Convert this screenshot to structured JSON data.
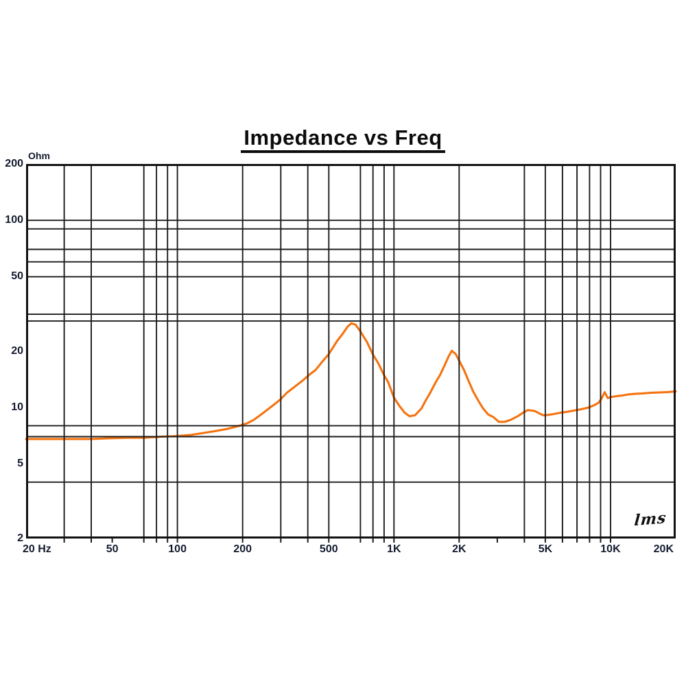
{
  "signature": "LMS",
  "colors": {
    "curve": "#f5730f",
    "grid": "#1c1c1c",
    "border": "#111111",
    "text": "#141b2e",
    "title": "#0c0c0c",
    "background": "#ffffff"
  },
  "y_axis": {
    "unit": "Ohm",
    "ticks": [
      {
        "label": "200",
        "value": 200
      },
      {
        "label": "100",
        "value": 100
      },
      {
        "label": "50",
        "value": 50
      },
      {
        "label": "20",
        "value": 20
      },
      {
        "label": "10",
        "value": 10
      },
      {
        "label": "5",
        "value": 5
      },
      {
        "label": "2",
        "value": 2
      }
    ]
  },
  "x_axis": {
    "ticks": [
      {
        "label": "20 Hz",
        "value": 20,
        "align": "left"
      },
      {
        "label": "50",
        "value": 50,
        "align": "center"
      },
      {
        "label": "100",
        "value": 100,
        "align": "center"
      },
      {
        "label": "200",
        "value": 200,
        "align": "center"
      },
      {
        "label": "500",
        "value": 500,
        "align": "center"
      },
      {
        "label": "1K",
        "value": 1000,
        "align": "center"
      },
      {
        "label": "2K",
        "value": 2000,
        "align": "center"
      },
      {
        "label": "5K",
        "value": 5000,
        "align": "center"
      },
      {
        "label": "10K",
        "value": 10000,
        "align": "center"
      },
      {
        "label": "20K",
        "value": 20000,
        "align": "right"
      }
    ]
  },
  "grid": {
    "x_lines_hz": [
      30,
      40,
      70,
      80,
      90,
      100,
      200,
      300,
      400,
      500,
      700,
      800,
      900,
      1000,
      2000,
      4000,
      5000,
      6000,
      7000,
      8000,
      9000,
      10000
    ],
    "y_lines_ohm": [
      100,
      90,
      70,
      60,
      50,
      31.5,
      29,
      8,
      7,
      4
    ],
    "x_axis_ticks_hz": [
      30,
      40,
      50,
      70,
      80,
      90,
      100,
      200,
      300,
      400,
      500,
      700,
      800,
      900,
      1000,
      2000,
      3000,
      4000,
      5000,
      6000,
      7000,
      8000,
      9000,
      10000
    ]
  },
  "chart_data": {
    "type": "line",
    "title": "Impedance vs Freq",
    "xlabel": "Hz",
    "ylabel": "Ohm",
    "x_scale": "log",
    "y_scale": "log",
    "xlim": [
      20,
      20000
    ],
    "ylim": [
      2,
      200
    ],
    "grid": true,
    "legend": false,
    "annotations": [
      "LMS signature bottom-right"
    ],
    "series": [
      {
        "name": "Impedance",
        "color": "#f5730f",
        "points": [
          [
            20,
            6.8
          ],
          [
            24,
            6.8
          ],
          [
            28,
            6.8
          ],
          [
            33,
            6.8
          ],
          [
            40,
            6.8
          ],
          [
            48,
            6.85
          ],
          [
            58,
            6.9
          ],
          [
            70,
            6.9
          ],
          [
            85,
            7.0
          ],
          [
            100,
            7.05
          ],
          [
            115,
            7.15
          ],
          [
            130,
            7.3
          ],
          [
            150,
            7.5
          ],
          [
            170,
            7.7
          ],
          [
            190,
            7.95
          ],
          [
            210,
            8.25
          ],
          [
            225,
            8.6
          ],
          [
            247,
            9.3
          ],
          [
            265,
            9.9
          ],
          [
            280,
            10.4
          ],
          [
            300,
            11.1
          ],
          [
            320,
            12.0
          ],
          [
            350,
            13.0
          ],
          [
            380,
            14.0
          ],
          [
            410,
            15.1
          ],
          [
            435,
            15.9
          ],
          [
            465,
            17.5
          ],
          [
            500,
            19.3
          ],
          [
            545,
            22.6
          ],
          [
            580,
            24.8
          ],
          [
            610,
            27.0
          ],
          [
            635,
            28.2
          ],
          [
            665,
            27.7
          ],
          [
            700,
            25.5
          ],
          [
            750,
            22.4
          ],
          [
            800,
            19.2
          ],
          [
            845,
            17.3
          ],
          [
            900,
            14.9
          ],
          [
            940,
            13.7
          ],
          [
            1000,
            11.3
          ],
          [
            1060,
            10.2
          ],
          [
            1120,
            9.4
          ],
          [
            1180,
            9.0
          ],
          [
            1250,
            9.1
          ],
          [
            1340,
            9.9
          ],
          [
            1400,
            10.9
          ],
          [
            1470,
            12.0
          ],
          [
            1550,
            13.5
          ],
          [
            1630,
            14.9
          ],
          [
            1720,
            17.0
          ],
          [
            1790,
            18.8
          ],
          [
            1850,
            20.1
          ],
          [
            1930,
            19.3
          ],
          [
            2000,
            17.8
          ],
          [
            2100,
            16.0
          ],
          [
            2210,
            13.9
          ],
          [
            2320,
            12.2
          ],
          [
            2450,
            10.9
          ],
          [
            2580,
            9.9
          ],
          [
            2720,
            9.2
          ],
          [
            2880,
            8.9
          ],
          [
            3050,
            8.4
          ],
          [
            3250,
            8.4
          ],
          [
            3450,
            8.6
          ],
          [
            3700,
            8.95
          ],
          [
            3950,
            9.4
          ],
          [
            4150,
            9.7
          ],
          [
            4450,
            9.6
          ],
          [
            4700,
            9.3
          ],
          [
            4900,
            9.1
          ],
          [
            5200,
            9.15
          ],
          [
            5500,
            9.25
          ],
          [
            5900,
            9.4
          ],
          [
            6300,
            9.5
          ],
          [
            6800,
            9.65
          ],
          [
            7300,
            9.8
          ],
          [
            7900,
            10.0
          ],
          [
            8400,
            10.3
          ],
          [
            8800,
            10.6
          ],
          [
            9100,
            11.2
          ],
          [
            9400,
            12.1
          ],
          [
            9700,
            11.25
          ],
          [
            10100,
            11.4
          ],
          [
            10600,
            11.5
          ],
          [
            11300,
            11.6
          ],
          [
            12000,
            11.75
          ],
          [
            13000,
            11.85
          ],
          [
            14000,
            11.9
          ],
          [
            15300,
            12.0
          ],
          [
            16800,
            12.05
          ],
          [
            18300,
            12.1
          ],
          [
            20000,
            12.2
          ]
        ]
      }
    ]
  }
}
